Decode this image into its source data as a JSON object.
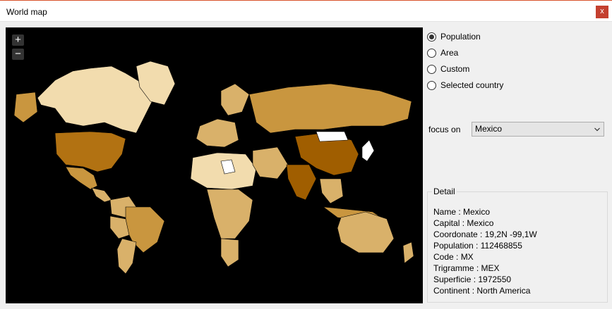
{
  "window": {
    "title": "World map",
    "close_label": "x"
  },
  "map": {
    "zoom_in": "+",
    "zoom_out": "−"
  },
  "options": [
    {
      "label": "Population",
      "checked": true
    },
    {
      "label": "Area",
      "checked": false
    },
    {
      "label": "Custom",
      "checked": false
    },
    {
      "label": "Selected country",
      "checked": false
    }
  ],
  "focus": {
    "label": "focus on",
    "value": "Mexico"
  },
  "detail": {
    "legend": "Detail",
    "lines": [
      "Name : Mexico",
      "Capital : Mexico",
      "Coordonate : 19,2N -99,1W",
      "Population : 112468855",
      "Code : MX",
      "Trigramme : MEX",
      "Superficie : 1972550",
      "Continent : North America"
    ]
  },
  "colors": {
    "ocean": "#000000",
    "light": "#f2dcae",
    "mid": "#d9b16a",
    "medium": "#c9963f",
    "dark": "#b27212",
    "darkest": "#a05e00",
    "empty": "#ffffff",
    "title_accent": "#d9532c"
  }
}
